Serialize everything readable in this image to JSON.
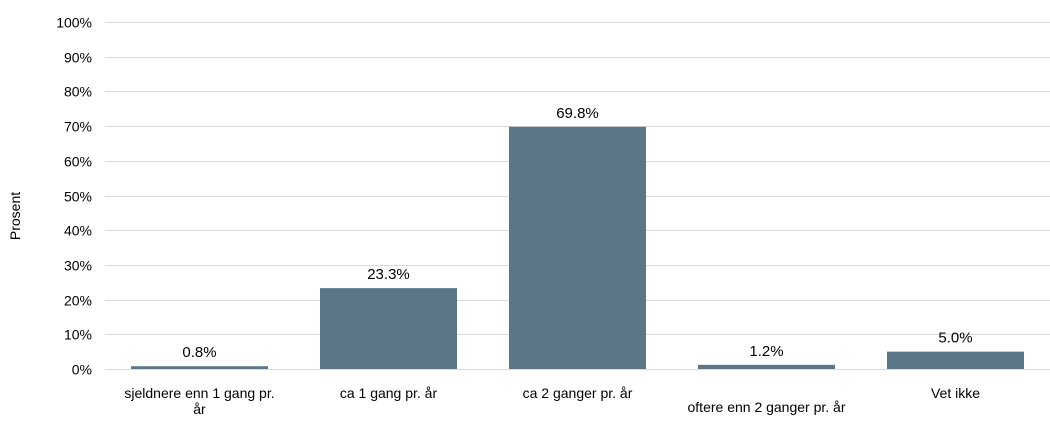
{
  "chart_data": {
    "type": "bar",
    "categories": [
      [
        "sjeldnere enn 1 gang pr.",
        "år"
      ],
      [
        "ca 1 gang pr. år"
      ],
      [
        "ca 2 ganger pr. år"
      ],
      [
        "oftere enn 2 ganger pr. år"
      ],
      [
        "Vet ikke"
      ]
    ],
    "values": [
      0.8,
      23.3,
      69.8,
      1.2,
      5.0
    ],
    "data_labels": [
      "0.8%",
      "23.3%",
      "69.8%",
      "1.2%",
      "5.0%"
    ],
    "ylabel": "Prosent",
    "xlabel": "",
    "ylim": [
      0,
      100
    ],
    "yticks": [
      0,
      10,
      20,
      30,
      40,
      50,
      60,
      70,
      80,
      90,
      100
    ],
    "ytick_labels": [
      "0%",
      "10%",
      "20%",
      "30%",
      "40%",
      "50%",
      "60%",
      "70%",
      "80%",
      "90%",
      "100%"
    ],
    "grid": true,
    "legend": "none",
    "bar_color": "#5b7787",
    "grid_color": "#d9d9d9"
  }
}
